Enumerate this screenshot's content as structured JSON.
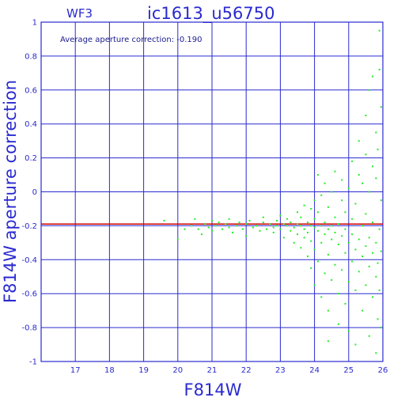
{
  "chart_data": {
    "type": "scatter",
    "chip": "WF3",
    "title": "ic1613_u56750",
    "annotation": "Average aperture correction: -0.190",
    "xlabel": "F814W",
    "ylabel": "F814W aperture correction",
    "xlim": [
      16,
      26
    ],
    "ylim": [
      -1,
      1
    ],
    "x_ticks": [
      17,
      18,
      19,
      20,
      21,
      22,
      23,
      24,
      25,
      26
    ],
    "y_ticks": [
      -1,
      -0.8,
      -0.6,
      -0.4,
      -0.2,
      0,
      0.2,
      0.4,
      0.6,
      0.8,
      1
    ],
    "grid": true,
    "average_line": -0.19,
    "colors": {
      "frame": "#2a2ad0",
      "grid": "#2a2ad0",
      "points": "#22ee22",
      "average_line": "#cc0000",
      "text": "#2a2ad0"
    },
    "points": [
      [
        19.6,
        -0.17
      ],
      [
        20.0,
        -0.28
      ],
      [
        20.2,
        -0.22
      ],
      [
        20.4,
        -0.2
      ],
      [
        20.5,
        -0.16
      ],
      [
        20.6,
        -0.22
      ],
      [
        20.7,
        -0.25
      ],
      [
        20.8,
        -0.19
      ],
      [
        20.9,
        -0.21
      ],
      [
        21.0,
        -0.17
      ],
      [
        21.0,
        -0.23
      ],
      [
        21.1,
        -0.2
      ],
      [
        21.2,
        -0.18
      ],
      [
        21.3,
        -0.22
      ],
      [
        21.4,
        -0.19
      ],
      [
        21.5,
        -0.21
      ],
      [
        21.5,
        -0.16
      ],
      [
        21.6,
        -0.24
      ],
      [
        21.7,
        -0.2
      ],
      [
        21.8,
        -0.18
      ],
      [
        21.9,
        -0.22
      ],
      [
        22.0,
        -0.19
      ],
      [
        22.0,
        -0.26
      ],
      [
        22.1,
        -0.17
      ],
      [
        22.2,
        -0.21
      ],
      [
        22.3,
        -0.2
      ],
      [
        22.4,
        -0.23
      ],
      [
        22.5,
        -0.18
      ],
      [
        22.5,
        -0.15
      ],
      [
        22.6,
        -0.22
      ],
      [
        22.7,
        -0.19
      ],
      [
        22.8,
        -0.21
      ],
      [
        22.8,
        -0.24
      ],
      [
        22.9,
        -0.17
      ],
      [
        22.9,
        -0.2
      ],
      [
        23.0,
        -0.22
      ],
      [
        23.0,
        -0.14
      ],
      [
        23.1,
        -0.19
      ],
      [
        23.1,
        -0.27
      ],
      [
        23.2,
        -0.2
      ],
      [
        23.2,
        -0.16
      ],
      [
        23.3,
        -0.23
      ],
      [
        23.3,
        -0.18
      ],
      [
        23.4,
        -0.21
      ],
      [
        23.4,
        -0.3
      ],
      [
        23.5,
        -0.19
      ],
      [
        23.5,
        -0.12
      ],
      [
        23.5,
        -0.25
      ],
      [
        23.6,
        -0.2
      ],
      [
        23.6,
        -0.33
      ],
      [
        23.6,
        -0.15
      ],
      [
        23.7,
        -0.22
      ],
      [
        23.7,
        -0.08
      ],
      [
        23.7,
        -0.27
      ],
      [
        23.8,
        -0.18
      ],
      [
        23.8,
        -0.38
      ],
      [
        23.8,
        -0.24
      ],
      [
        23.9,
        -0.2
      ],
      [
        23.9,
        -0.1
      ],
      [
        23.9,
        -0.45
      ],
      [
        23.9,
        -0.29
      ],
      [
        24.0,
        -0.21
      ],
      [
        24.0,
        -0.16
      ],
      [
        24.0,
        -0.34
      ],
      [
        24.0,
        -0.05
      ],
      [
        24.0,
        -0.55
      ],
      [
        24.1,
        -0.23
      ],
      [
        24.1,
        -0.41
      ],
      [
        24.1,
        -0.12
      ],
      [
        24.1,
        0.1
      ],
      [
        24.2,
        -0.2
      ],
      [
        24.2,
        -0.3
      ],
      [
        24.2,
        -0.62
      ],
      [
        24.2,
        -0.02
      ],
      [
        24.3,
        -0.25
      ],
      [
        24.3,
        -0.18
      ],
      [
        24.3,
        -0.48
      ],
      [
        24.3,
        0.05
      ],
      [
        24.4,
        -0.22
      ],
      [
        24.4,
        -0.37
      ],
      [
        24.4,
        -0.7
      ],
      [
        24.4,
        -0.09
      ],
      [
        24.4,
        -0.88
      ],
      [
        24.5,
        -0.2
      ],
      [
        24.5,
        -0.28
      ],
      [
        24.5,
        -0.52
      ],
      [
        24.5,
        0.0
      ],
      [
        24.6,
        -0.24
      ],
      [
        24.6,
        -0.43
      ],
      [
        24.6,
        -0.15
      ],
      [
        24.6,
        0.12
      ],
      [
        24.7,
        -0.31
      ],
      [
        24.7,
        -0.6
      ],
      [
        24.7,
        -0.19
      ],
      [
        24.7,
        -0.78
      ],
      [
        24.8,
        -0.26
      ],
      [
        24.8,
        -0.05
      ],
      [
        24.8,
        -0.46
      ],
      [
        24.8,
        0.07
      ],
      [
        24.9,
        -0.22
      ],
      [
        24.9,
        -0.36
      ],
      [
        24.9,
        -0.66
      ],
      [
        24.9,
        -0.12
      ],
      [
        25.0,
        -0.3
      ],
      [
        25.0,
        -0.53
      ],
      [
        25.0,
        0.02
      ],
      [
        25.0,
        -0.82
      ],
      [
        25.1,
        -0.25
      ],
      [
        25.1,
        -0.41
      ],
      [
        25.1,
        -0.16
      ],
      [
        25.1,
        0.18
      ],
      [
        25.2,
        -0.34
      ],
      [
        25.2,
        -0.58
      ],
      [
        25.2,
        -0.07
      ],
      [
        25.2,
        -0.9
      ],
      [
        25.3,
        -0.28
      ],
      [
        25.3,
        -0.47
      ],
      [
        25.3,
        0.1
      ],
      [
        25.3,
        0.3
      ],
      [
        25.4,
        -0.2
      ],
      [
        25.4,
        -0.38
      ],
      [
        25.4,
        -0.7
      ],
      [
        25.4,
        0.05
      ],
      [
        25.5,
        -0.32
      ],
      [
        25.5,
        -0.55
      ],
      [
        25.5,
        -0.13
      ],
      [
        25.5,
        0.22
      ],
      [
        25.5,
        0.45
      ],
      [
        25.6,
        -0.27
      ],
      [
        25.6,
        -0.44
      ],
      [
        25.6,
        -0.85
      ],
      [
        25.6,
        0.0
      ],
      [
        25.6,
        0.6
      ],
      [
        25.7,
        -0.36
      ],
      [
        25.7,
        -0.62
      ],
      [
        25.7,
        -0.18
      ],
      [
        25.7,
        0.15
      ],
      [
        25.7,
        0.68
      ],
      [
        25.8,
        -0.3
      ],
      [
        25.8,
        -0.5
      ],
      [
        25.8,
        -0.95
      ],
      [
        25.8,
        0.08
      ],
      [
        25.8,
        0.35
      ],
      [
        25.85,
        -0.42
      ],
      [
        25.85,
        -0.75
      ],
      [
        25.85,
        0.25
      ],
      [
        25.9,
        -0.22
      ],
      [
        25.9,
        -0.58
      ],
      [
        25.9,
        0.72
      ],
      [
        25.9,
        0.95
      ],
      [
        25.95,
        -0.35
      ],
      [
        25.95,
        -0.8
      ],
      [
        25.95,
        0.5
      ],
      [
        25.95,
        -0.05
      ]
    ]
  }
}
